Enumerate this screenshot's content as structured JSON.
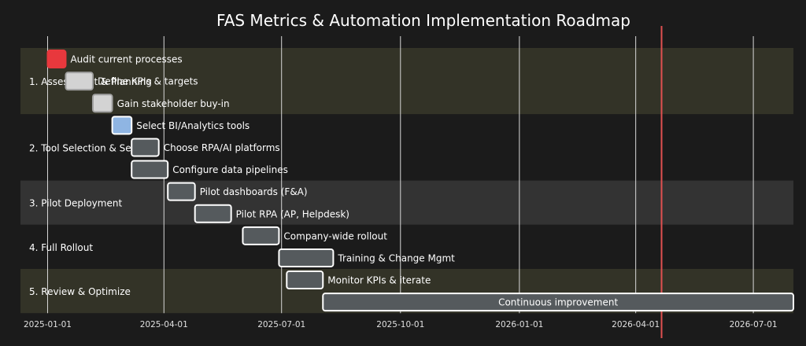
{
  "chart_data": {
    "type": "gantt",
    "title": "FAS Metrics & Automation Implementation Roadmap",
    "x_axis": {
      "type": "date",
      "range": [
        "2024-12-11",
        "2026-08-01"
      ],
      "ticks": [
        "2025-01-01",
        "2025-04-01",
        "2025-07-01",
        "2025-10-01",
        "2026-01-01",
        "2026-04-01",
        "2026-07-01"
      ],
      "grid": true
    },
    "today_marker": {
      "date": "2026-04-21",
      "color": "#e05050"
    },
    "sections": [
      {
        "name": "1. Assessment & Planning",
        "rows": 3,
        "background": "#333327"
      },
      {
        "name": "2. Tool Selection & Setup",
        "rows": 3,
        "background": "#1b1b1b"
      },
      {
        "name": "3. Pilot Deployment",
        "rows": 2,
        "background": "#333333"
      },
      {
        "name": "4. Full Rollout",
        "rows": 2,
        "background": "#1b1b1b"
      },
      {
        "name": "5. Review & Optimize",
        "rows": 2,
        "background": "#333327"
      }
    ],
    "tasks": [
      {
        "label": "Audit current processes",
        "start": "2025-01-01",
        "end": "2025-01-15",
        "status": "critical",
        "color": "#e8383d",
        "label_inside": false
      },
      {
        "label": "Define KPIs & targets",
        "start": "2025-01-15",
        "end": "2025-02-05",
        "status": "done",
        "color": "#d3d3d3",
        "label_inside": false
      },
      {
        "label": "Gain stakeholder buy-in",
        "start": "2025-02-05",
        "end": "2025-02-20",
        "status": "done",
        "color": "#d3d3d3",
        "label_inside": false
      },
      {
        "label": "Select BI/Analytics tools",
        "start": "2025-02-20",
        "end": "2025-03-07",
        "status": "active",
        "color": "#8fb5e3",
        "label_inside": false
      },
      {
        "label": "Choose RPA/AI platforms",
        "start": "2025-03-07",
        "end": "2025-03-28",
        "status": "planned",
        "color": "#555a5d",
        "label_inside": false
      },
      {
        "label": "Configure data pipelines",
        "start": "2025-03-07",
        "end": "2025-04-04",
        "status": "planned",
        "color": "#555a5d",
        "label_inside": false
      },
      {
        "label": "Pilot dashboards (F&A)",
        "start": "2025-04-04",
        "end": "2025-04-25",
        "status": "planned",
        "color": "#555a5d",
        "label_inside": false
      },
      {
        "label": "Pilot RPA (AP, Helpdesk)",
        "start": "2025-04-25",
        "end": "2025-05-23",
        "status": "planned",
        "color": "#555a5d",
        "label_inside": false
      },
      {
        "label": "Company-wide rollout",
        "start": "2025-06-01",
        "end": "2025-06-29",
        "status": "planned",
        "color": "#555a5d",
        "label_inside": false
      },
      {
        "label": "Training & Change Mgmt",
        "start": "2025-06-29",
        "end": "2025-08-10",
        "status": "planned",
        "color": "#555a5d",
        "label_inside": false
      },
      {
        "label": "Monitor KPIs & iterate",
        "start": "2025-07-05",
        "end": "2025-08-02",
        "status": "planned",
        "color": "#555a5d",
        "label_inside": false
      },
      {
        "label": "Continuous improvement",
        "start": "2025-08-02",
        "end": "2026-08-01",
        "status": "planned",
        "color": "#555a5d",
        "label_inside": true
      }
    ]
  }
}
